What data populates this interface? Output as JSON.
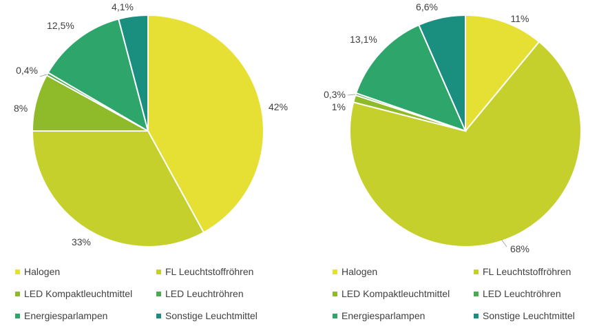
{
  "chart_data": [
    {
      "type": "pie",
      "labels": [
        "Halogen",
        "FL Leuchtstoffröhren",
        "LED Kompaktleuchtmittel",
        "LED Leuchtröhren",
        "Energiesparlampen",
        "Sonstige Leuchtmittel"
      ],
      "values": [
        42,
        33,
        8,
        0.4,
        12.5,
        4.1
      ],
      "data_labels": [
        "42%",
        "33%",
        "8%",
        "0,4%",
        "12,5%",
        "4,1%"
      ],
      "colors": [
        "#e5e033",
        "#c5d02d",
        "#8fba2a",
        "#4aaa4f",
        "#2ea56a",
        "#1a8f80"
      ],
      "legend": "bottom"
    },
    {
      "type": "pie",
      "labels": [
        "Halogen",
        "FL Leuchtstoffröhren",
        "LED Kompaktleuchtmittel",
        "LED Leuchtröhren",
        "Energiesparlampen",
        "Sonstige Leuchtmittel"
      ],
      "values": [
        11,
        68,
        1,
        0.3,
        13.1,
        6.6
      ],
      "data_labels": [
        "11%",
        "68%",
        "1%",
        "0,3%",
        "13,1%",
        "6,6%"
      ],
      "colors": [
        "#e5e033",
        "#c5d02d",
        "#8fba2a",
        "#4aaa4f",
        "#2ea56a",
        "#1a8f80"
      ],
      "legend": "bottom"
    }
  ]
}
